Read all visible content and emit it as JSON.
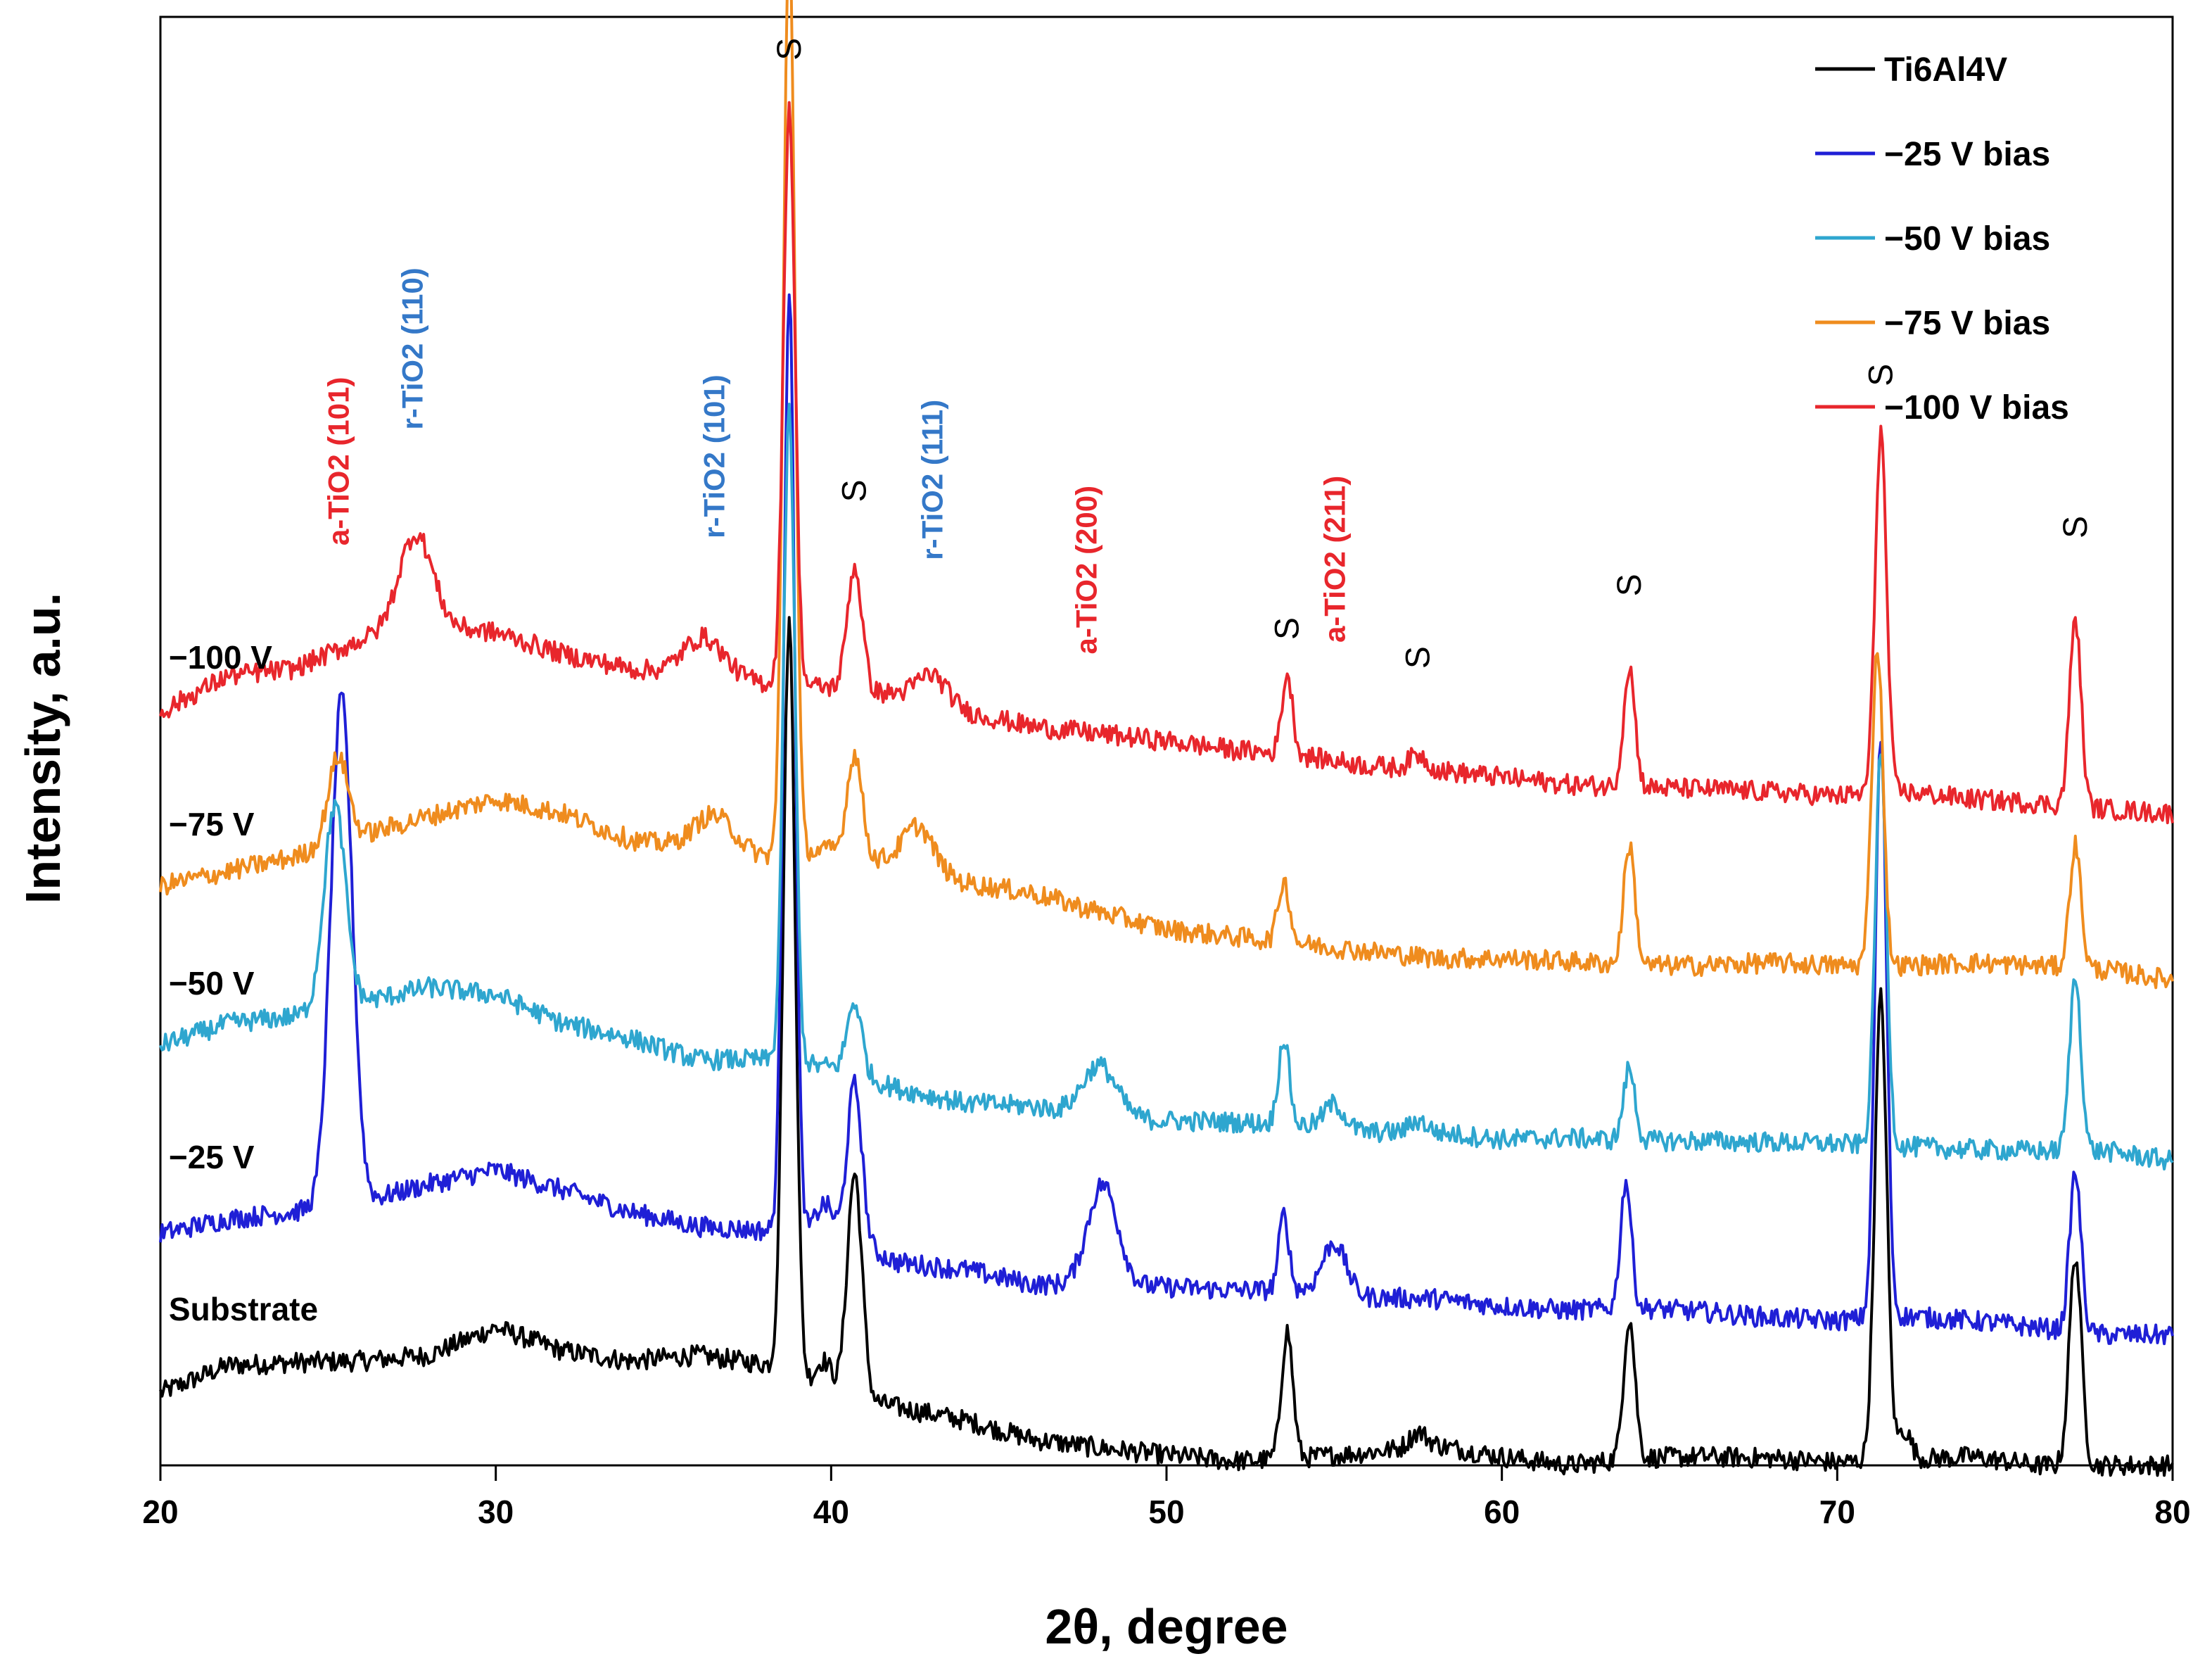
{
  "chart_data": {
    "type": "line",
    "xlabel": "2θ, degree",
    "ylabel": "Intensity, a.u.",
    "xlim": [
      20,
      80
    ],
    "ylim": [
      0,
      100
    ],
    "x_ticks": [
      "20",
      "30",
      "40",
      "50",
      "60",
      "70",
      "80"
    ],
    "grid": false,
    "legend_position": "top-right",
    "series": [
      {
        "name": "Ti6Al4V",
        "curve_label": "Substrate",
        "color": "#000000",
        "baseline": [
          5.0,
          6.9,
          7.1,
          7.2,
          7.6,
          9.5,
          7.9,
          7.2,
          7.6,
          7.0,
          5.0,
          4.0,
          3.1,
          1.8,
          1.2,
          0.7,
          0.3,
          0.5,
          0.9,
          1.4,
          0.6,
          0.0,
          0.5,
          0.6,
          0.5,
          0.2,
          0.4,
          0.6,
          0.0,
          0.0,
          0.0
        ],
        "peaks": [
          [
            38.75,
            52.0,
            0.18
          ],
          [
            39.8,
            2.0,
            0.25
          ],
          [
            40.7,
            15.5,
            0.22
          ],
          [
            53.6,
            8.8,
            0.17
          ],
          [
            57.5,
            1.0,
            0.25
          ],
          [
            63.8,
            9.7,
            0.17
          ],
          [
            71.3,
            32.0,
            0.18
          ],
          [
            72.0,
            2.0,
            0.2
          ],
          [
            77.1,
            14.5,
            0.18
          ]
        ]
      },
      {
        "name": "−25 V bias",
        "curve_label": "−25 V",
        "color": "#1f1fd6",
        "baseline": [
          16.0,
          17.0,
          17.5,
          18.2,
          19.4,
          20.4,
          19.0,
          17.5,
          16.5,
          16.2,
          16.0,
          14.0,
          13.5,
          12.5,
          12.4,
          12.3,
          12.1,
          12.1,
          11.6,
          11.5,
          11.0,
          10.7,
          10.9,
          10.6,
          10.2,
          10.0,
          10.3,
          10.0,
          9.5,
          9.0,
          9.0
        ],
        "peaks": [
          [
            25.4,
            35.0,
            0.32
          ],
          [
            38.75,
            65.0,
            0.17
          ],
          [
            39.8,
            2.0,
            0.25
          ],
          [
            40.7,
            11.0,
            0.22
          ],
          [
            48.1,
            7.0,
            0.45
          ],
          [
            53.5,
            5.2,
            0.15
          ],
          [
            55.0,
            3.5,
            0.35
          ],
          [
            63.7,
            8.8,
            0.16
          ],
          [
            71.3,
            40.0,
            0.17
          ],
          [
            77.1,
            11.0,
            0.17
          ]
        ]
      },
      {
        "name": "−50 V bias",
        "curve_label": "−50 V",
        "color": "#2ea6cf",
        "baseline": [
          29.0,
          30.5,
          31.0,
          32.0,
          33.0,
          32.5,
          30.5,
          29.5,
          28.0,
          28.0,
          27.5,
          26.0,
          25.0,
          24.8,
          24.0,
          23.8,
          23.7,
          23.5,
          23.0,
          23.0,
          22.5,
          22.6,
          22.4,
          22.4,
          22.3,
          22.2,
          22.0,
          21.8,
          21.7,
          21.7,
          21.0
        ],
        "peaks": [
          [
            25.2,
            14.0,
            0.32
          ],
          [
            38.75,
            45.0,
            0.17
          ],
          [
            40.7,
            5.0,
            0.22
          ],
          [
            48.0,
            3.6,
            0.5
          ],
          [
            53.5,
            6.0,
            0.16
          ],
          [
            55.0,
            1.7,
            0.3
          ],
          [
            57.5,
            0.8,
            0.25
          ],
          [
            63.8,
            5.0,
            0.17
          ],
          [
            71.3,
            27.0,
            0.17
          ],
          [
            77.1,
            12.0,
            0.17
          ]
        ]
      },
      {
        "name": "−75 V bias",
        "curve_label": "−75 V",
        "color": "#ef8c1e",
        "baseline": [
          40.0,
          41.0,
          42.0,
          43.5,
          44.8,
          46.0,
          45.0,
          43.2,
          42.5,
          42.0,
          42.5,
          41.5,
          40.2,
          39.5,
          38.2,
          37.0,
          36.5,
          36.0,
          35.5,
          35.0,
          35.0,
          34.8,
          34.5,
          34.5,
          34.7,
          34.5,
          34.5,
          34.7,
          34.5,
          34.2,
          33.5
        ],
        "peaks": [
          [
            25.3,
            6.0,
            0.3
          ],
          [
            36.5,
            2.5,
            0.6
          ],
          [
            38.75,
            64.0,
            0.17
          ],
          [
            40.7,
            7.0,
            0.22
          ],
          [
            42.6,
            3.0,
            0.45
          ],
          [
            53.5,
            4.2,
            0.17
          ],
          [
            63.8,
            8.3,
            0.17
          ],
          [
            71.2,
            22.0,
            0.17
          ],
          [
            77.1,
            8.5,
            0.17
          ]
        ]
      },
      {
        "name": "−100 V bias",
        "curve_label": "−100 V",
        "color": "#e8262c",
        "baseline": [
          52.0,
          54.5,
          55.0,
          57.0,
          58.0,
          57.5,
          56.0,
          55.0,
          54.5,
          54.0,
          53.7,
          53.2,
          52.0,
          51.0,
          50.5,
          50.0,
          49.4,
          49.0,
          48.3,
          48.0,
          47.5,
          47.0,
          46.8,
          46.7,
          46.5,
          46.2,
          46.5,
          46.0,
          45.7,
          45.3,
          45.0
        ],
        "peaks": [
          [
            27.6,
            6.5,
            0.5
          ],
          [
            36.2,
            2.7,
            0.6
          ],
          [
            38.75,
            40.0,
            0.17
          ],
          [
            40.7,
            8.5,
            0.22
          ],
          [
            43.0,
            2.0,
            0.45
          ],
          [
            53.6,
            5.5,
            0.16
          ],
          [
            57.5,
            1.0,
            0.25
          ],
          [
            63.8,
            8.3,
            0.17
          ],
          [
            71.3,
            25.0,
            0.17
          ],
          [
            77.1,
            13.0,
            0.17
          ]
        ]
      }
    ],
    "annotations": {
      "phase_labels": [
        {
          "text": "a-TiO2 (101)",
          "x": 25.3,
          "anchor_y": 63.5,
          "color": "#e8262c"
        },
        {
          "text": "r-TiO2 (110)",
          "x": 27.5,
          "anchor_y": 71.5,
          "color": "#3478c8"
        },
        {
          "text": "r-TiO2 (101)",
          "x": 36.5,
          "anchor_y": 64.0,
          "color": "#3478c8"
        },
        {
          "text": "r-TiO2 (111)",
          "x": 43.0,
          "anchor_y": 62.5,
          "color": "#3478c8"
        },
        {
          "text": "a-TiO2 (200)",
          "x": 47.6,
          "anchor_y": 56.0,
          "color": "#e8262c"
        },
        {
          "text": "a-TiO2 (211)",
          "x": 55.0,
          "anchor_y": 56.8,
          "color": "#e8262c"
        }
      ],
      "substrate_marks": [
        {
          "text": "S",
          "x": 38.75,
          "anchor_y": 97.0
        },
        {
          "text": "S",
          "x": 40.7,
          "anchor_y": 66.5
        },
        {
          "text": "S",
          "x": 53.6,
          "anchor_y": 57.0
        },
        {
          "text": "S",
          "x": 57.5,
          "anchor_y": 55.0
        },
        {
          "text": "S",
          "x": 63.8,
          "anchor_y": 60.0
        },
        {
          "text": "S",
          "x": 71.3,
          "anchor_y": 74.5
        },
        {
          "text": "S",
          "x": 77.1,
          "anchor_y": 64.0
        }
      ]
    }
  }
}
